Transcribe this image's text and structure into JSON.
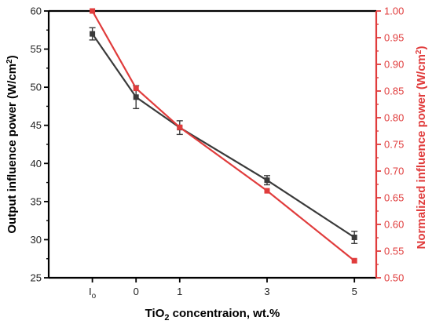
{
  "chart_data": {
    "type": "line",
    "categories": [
      "Io",
      "0",
      "1",
      "3",
      "5"
    ],
    "x_positions": [
      -1,
      0,
      1,
      3,
      5
    ],
    "xlim": [
      -2,
      5.5
    ],
    "xlabel": {
      "main": "TiO",
      "sub": "2",
      "rest": " concentraion, wt.%"
    },
    "category_labels": [
      {
        "main": "I",
        "sub": "o"
      },
      {
        "main": "0",
        "sub": ""
      },
      {
        "main": "1",
        "sub": ""
      },
      {
        "main": "3",
        "sub": ""
      },
      {
        "main": "5",
        "sub": ""
      }
    ],
    "left_axis": {
      "label": {
        "main": "Output influence power (W/cm",
        "sup": "2",
        "rest": ")"
      },
      "ylim": [
        25,
        60
      ],
      "ticks": [
        25,
        30,
        35,
        40,
        45,
        50,
        55,
        60
      ],
      "tick_labels": [
        "25",
        "30",
        "35",
        "40",
        "45",
        "50",
        "55",
        "60"
      ],
      "color": "#000000"
    },
    "right_axis": {
      "label": {
        "main": "Normalized influence power (W/cm",
        "sup": "2",
        "rest": ")"
      },
      "ylim": [
        0.5,
        1.0
      ],
      "ticks": [
        0.5,
        0.55,
        0.6,
        0.65,
        0.7,
        0.75,
        0.8,
        0.85,
        0.9,
        0.95,
        1.0
      ],
      "tick_labels": [
        "0.50",
        "0.55",
        "0.60",
        "0.65",
        "0.70",
        "0.75",
        "0.80",
        "0.85",
        "0.90",
        "0.95",
        "1.00"
      ],
      "color": "#e03c3c"
    },
    "series": [
      {
        "axis": "left",
        "color": "#3a3a3a",
        "marker": "square",
        "values": [
          57.0,
          48.7,
          44.7,
          37.8,
          30.3
        ],
        "errors": [
          0.8,
          1.5,
          0.9,
          0.6,
          0.8
        ]
      },
      {
        "axis": "right",
        "color": "#e03c3c",
        "marker": "square",
        "values": [
          1.0,
          0.855,
          0.782,
          0.663,
          0.532
        ]
      }
    ]
  }
}
